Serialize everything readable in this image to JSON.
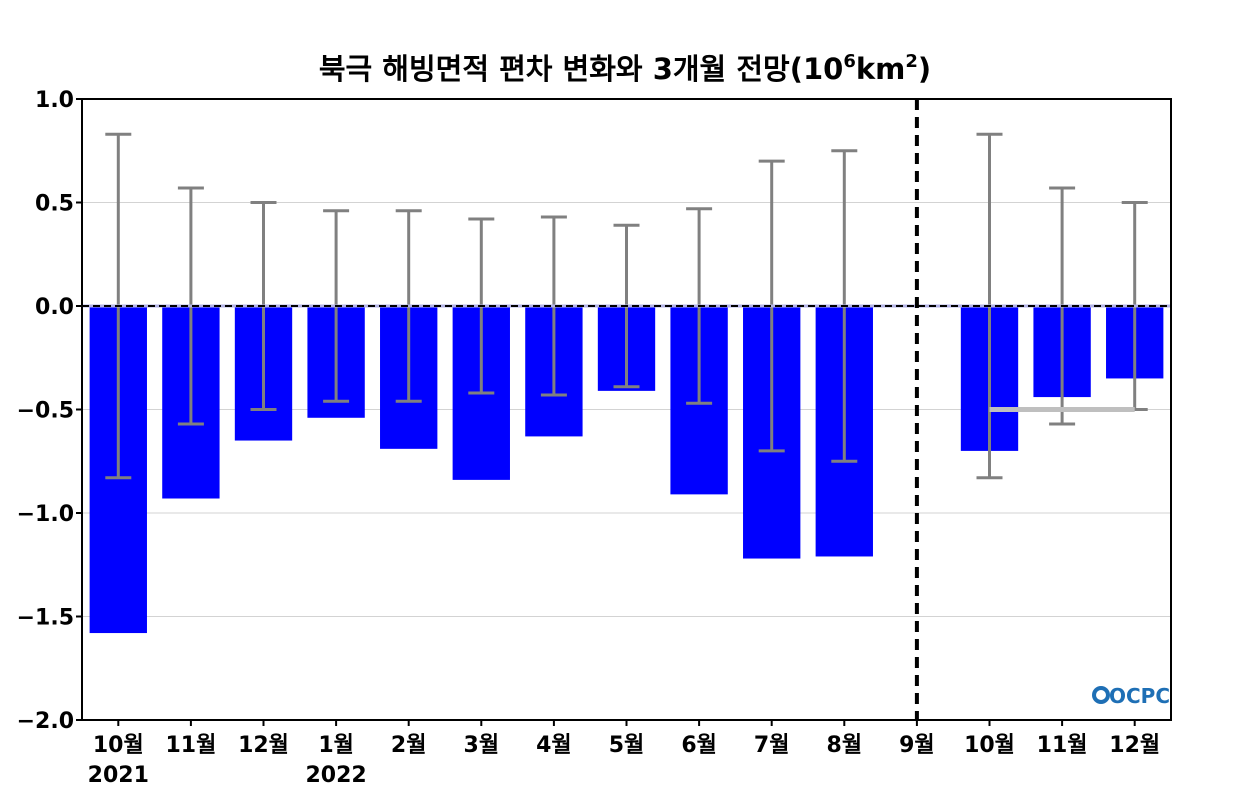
{
  "title": {
    "main": "북극 해빙면적 편차 변화와 3개월 전망(10",
    "sup1": "6",
    "mid": "km",
    "sup2": "2",
    "end": ")"
  },
  "logo": {
    "text": "OCPC"
  },
  "chart_data": {
    "type": "bar",
    "title": "북극 해빙면적 편차 변화와 3개월 전망(10⁶km²)",
    "xlabel": "",
    "ylabel": "",
    "ylim": [
      -2.0,
      1.0
    ],
    "yticks": [
      1.0,
      0.5,
      0.0,
      -0.5,
      -1.0,
      -1.5,
      -2.0
    ],
    "ytick_labels": [
      "1.0",
      "0.5",
      "0.0",
      "−0.5",
      "−1.0",
      "−1.5",
      "−2.0"
    ],
    "categories": [
      "10월",
      "11월",
      "12월",
      "1월",
      "2월",
      "3월",
      "4월",
      "5월",
      "6월",
      "7월",
      "8월",
      "9월",
      "10월",
      "11월",
      "12월"
    ],
    "year_labels": [
      "2021",
      "",
      "",
      "2022",
      "",
      "",
      "",
      "",
      "",
      "",
      "",
      "",
      "",
      "",
      ""
    ],
    "values": [
      -1.58,
      -0.93,
      -0.65,
      -0.54,
      -0.69,
      -0.84,
      -0.63,
      -0.41,
      -0.91,
      -1.22,
      -1.21,
      0.0,
      -0.7,
      -0.44,
      -0.35
    ],
    "error_bars": [
      0.83,
      0.57,
      0.5,
      0.46,
      0.46,
      0.42,
      0.43,
      0.39,
      0.47,
      0.7,
      0.75,
      null,
      0.83,
      0.57,
      0.5
    ],
    "forecast_divider_after": "8월",
    "forecast_reference": {
      "value": -0.5,
      "from_category_index": 12,
      "to_category_index": 14
    },
    "grid": true,
    "colors": {
      "bar": "#0000ff",
      "error_bar": "#808080",
      "zero_line": "#000000",
      "grid": "#d3d3d3",
      "reference_line": "#bfbfbf",
      "divider": "#000000"
    }
  }
}
